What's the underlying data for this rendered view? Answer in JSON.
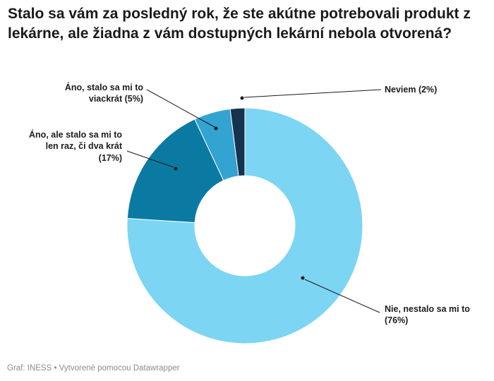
{
  "title": "Stalo sa vám za posledný rok, že ste akútne potrebovali produkt z lekárne, ale žiadna z vám dostupných lekární nebola otvorená?",
  "footer": "Graf: INESS • Vytvorené pomocou Datawrapper",
  "chart_data": {
    "type": "pie",
    "subtype": "donut",
    "title": "Stalo sa vám za posledný rok, že ste akútne potrebovali produkt z lekárne, ale žiadna z vám dostupných lekární nebola otvorená?",
    "categories": [
      "Nie, nestalo sa mi to",
      "Áno, ale stalo sa mi to len raz, či dva krát",
      "Áno, stalo sa mi to viackrát",
      "Neviem"
    ],
    "values": [
      76,
      17,
      5,
      2
    ],
    "unit": "%",
    "colors": [
      "#7cd5f2",
      "#0b7aa3",
      "#33a3d1",
      "#15334f"
    ],
    "start_angle_deg": 0,
    "direction": "clockwise",
    "inner_radius_ratio": 0.43,
    "legend": "none",
    "label_style": "callout",
    "annotations": [
      {
        "id": "viackrat",
        "align": "right",
        "lines": [
          "Áno, stalo sa mi to",
          "viackrát (5%)"
        ]
      },
      {
        "id": "raz",
        "align": "right",
        "lines": [
          "Áno, ale stalo sa mi to",
          "len raz, či dva krát",
          "(17%)"
        ]
      },
      {
        "id": "neviem",
        "align": "left",
        "lines": [
          "Neviem (2%)"
        ]
      },
      {
        "id": "nie",
        "align": "left",
        "lines": [
          "Nie, nestalo sa mi to",
          "(76%)"
        ]
      }
    ]
  }
}
